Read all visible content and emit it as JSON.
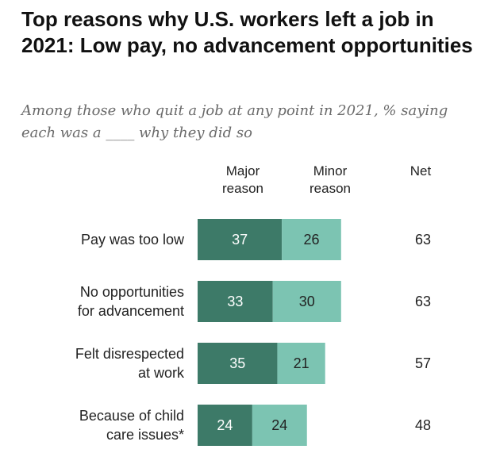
{
  "title": "Top reasons why U.S. workers left a job in 2021: Low pay, no advancement opportunities",
  "subtitle": "Among those who quit a job at any point in 2021, % saying each was a ____ why they did so",
  "headers": {
    "major": "Major reason",
    "minor": "Minor reason",
    "net": "Net"
  },
  "colors": {
    "major": "#3d7a68",
    "minor": "#7cc4b2"
  },
  "chart_data": {
    "type": "bar",
    "stacked": true,
    "orientation": "horizontal",
    "categories": [
      [
        "Pay was too low"
      ],
      [
        "No opportunities",
        "for advancement"
      ],
      [
        "Felt disrespected",
        "at work"
      ],
      [
        "Because of child",
        "care issues*"
      ]
    ],
    "series": [
      {
        "name": "Major reason",
        "values": [
          37,
          33,
          35,
          24
        ]
      },
      {
        "name": "Minor reason",
        "values": [
          26,
          30,
          21,
          24
        ]
      }
    ],
    "net": [
      63,
      63,
      57,
      48
    ]
  }
}
